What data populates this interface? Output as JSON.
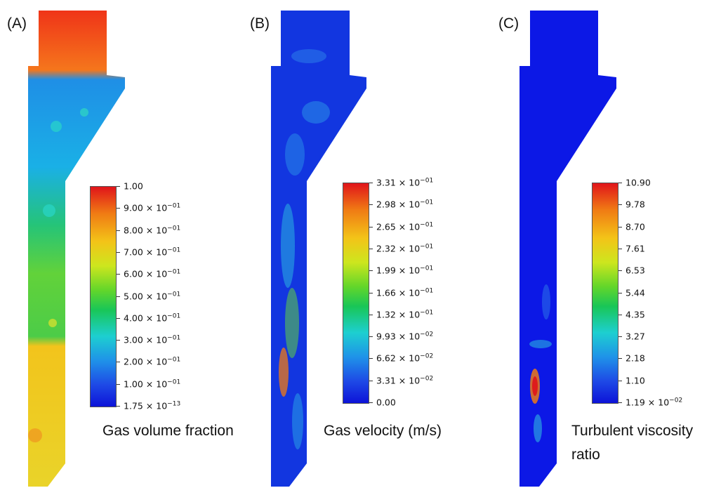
{
  "panels": [
    {
      "label": "(A)",
      "caption": [
        "Gas volume fraction"
      ],
      "ticks": [
        {
          "m": "1.00",
          "e": ""
        },
        {
          "m": "9.00 × 10",
          "e": "−01"
        },
        {
          "m": "8.00 × 10",
          "e": "−01"
        },
        {
          "m": "7.00 × 10",
          "e": "−01"
        },
        {
          "m": "6.00 × 10",
          "e": "−01"
        },
        {
          "m": "5.00 × 10",
          "e": "−01"
        },
        {
          "m": "4.00 × 10",
          "e": "−01"
        },
        {
          "m": "3.00 × 10",
          "e": "−01"
        },
        {
          "m": "2.00 × 10",
          "e": "−01"
        },
        {
          "m": "1.00 × 10",
          "e": "−01"
        },
        {
          "m": "1.75 × 10",
          "e": "−13"
        }
      ]
    },
    {
      "label": "(B)",
      "caption": [
        "Gas velocity (m/s)"
      ],
      "ticks": [
        {
          "m": "3.31 × 10",
          "e": "−01"
        },
        {
          "m": "2.98 × 10",
          "e": "−01"
        },
        {
          "m": "2.65 × 10",
          "e": "−01"
        },
        {
          "m": "2.32 × 10",
          "e": "−01"
        },
        {
          "m": "1.99 × 10",
          "e": "−01"
        },
        {
          "m": "1.66 × 10",
          "e": "−01"
        },
        {
          "m": "1.32 × 10",
          "e": "−01"
        },
        {
          "m": "9.93 × 10",
          "e": "−02"
        },
        {
          "m": "6.62 × 10",
          "e": "−02"
        },
        {
          "m": "3.31 × 10",
          "e": "−02"
        },
        {
          "m": "0.00",
          "e": ""
        }
      ]
    },
    {
      "label": "(C)",
      "caption": [
        "Turbulent viscosity",
        "ratio"
      ],
      "ticks": [
        {
          "m": "10.90",
          "e": ""
        },
        {
          "m": "9.78",
          "e": ""
        },
        {
          "m": "8.70",
          "e": ""
        },
        {
          "m": "7.61",
          "e": ""
        },
        {
          "m": "6.53",
          "e": ""
        },
        {
          "m": "5.44",
          "e": ""
        },
        {
          "m": "4.35",
          "e": ""
        },
        {
          "m": "3.27",
          "e": ""
        },
        {
          "m": "2.18",
          "e": ""
        },
        {
          "m": "1.10",
          "e": ""
        },
        {
          "m": "1.19 × 10",
          "e": "−02"
        }
      ]
    }
  ]
}
